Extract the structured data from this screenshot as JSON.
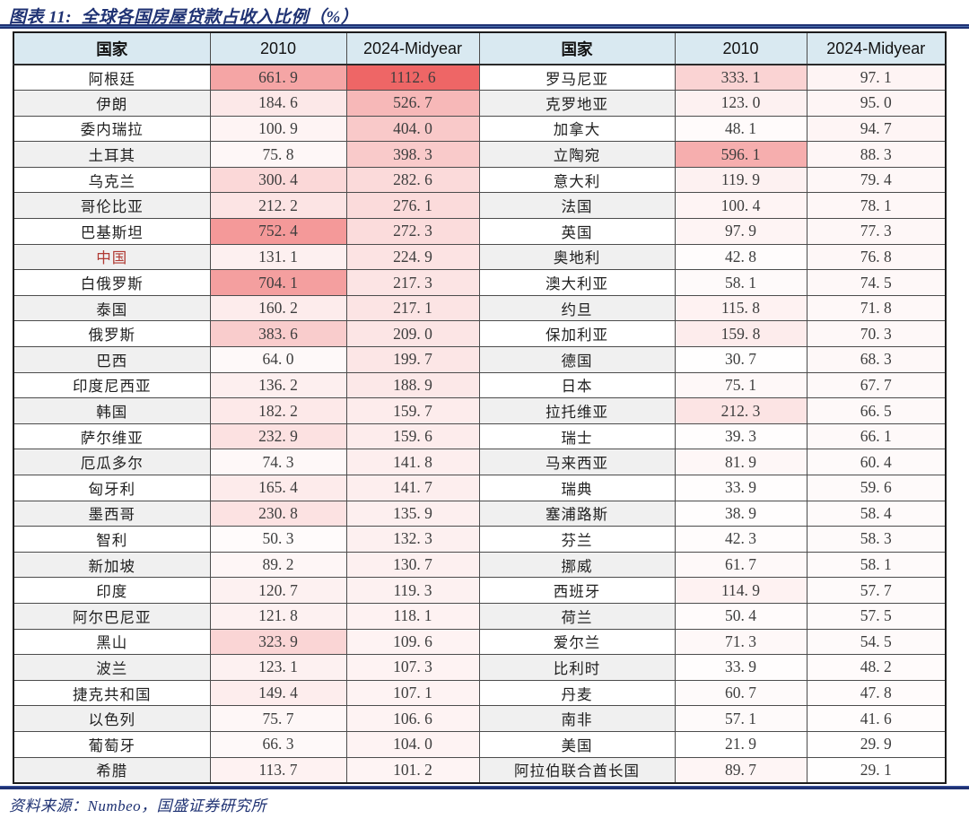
{
  "title": "图表 11:  全球各国房屋贷款占收入比例（%）",
  "footer": {
    "source_text": "资料来源：Numbeo，国盛证券研究所"
  },
  "colors": {
    "accent_navy": "#1f3273",
    "header_bg": "#d9e9f1",
    "alt_row_bg": "#f0f0f0",
    "grid_border": "#4c4c4c",
    "highlight_text": "#b03a33",
    "highlight_border": "#d9827e",
    "heat_low": "#ffffff",
    "heat_high": "#ee6666"
  },
  "chart_data": {
    "type": "table",
    "title": "全球各国房屋贷款占收入比例（%）",
    "figure_label": "图表 11",
    "columns": [
      "国家",
      "2010",
      "2024-Midyear"
    ],
    "highlight_country": "中国",
    "heat_scale": {
      "min": 21.9,
      "max": 1112.6,
      "low_color": "#ffffff",
      "high_color": "#ee6666"
    },
    "left_rows": [
      [
        "阿根廷",
        661.9,
        1112.6
      ],
      [
        "伊朗",
        184.6,
        526.7
      ],
      [
        "委内瑞拉",
        100.9,
        404.0
      ],
      [
        "土耳其",
        75.8,
        398.3
      ],
      [
        "乌克兰",
        300.4,
        282.6
      ],
      [
        "哥伦比亚",
        212.2,
        276.1
      ],
      [
        "巴基斯坦",
        752.4,
        272.3
      ],
      [
        "中国",
        131.1,
        224.9
      ],
      [
        "白俄罗斯",
        704.1,
        217.3
      ],
      [
        "泰国",
        160.2,
        217.1
      ],
      [
        "俄罗斯",
        383.6,
        209.0
      ],
      [
        "巴西",
        64.0,
        199.7
      ],
      [
        "印度尼西亚",
        136.2,
        188.9
      ],
      [
        "韩国",
        182.2,
        159.7
      ],
      [
        "萨尔维亚",
        232.9,
        159.6
      ],
      [
        "厄瓜多尔",
        74.3,
        141.8
      ],
      [
        "匈牙利",
        165.4,
        141.7
      ],
      [
        "墨西哥",
        230.8,
        135.9
      ],
      [
        "智利",
        50.3,
        132.3
      ],
      [
        "新加坡",
        89.2,
        130.7
      ],
      [
        "印度",
        120.7,
        119.3
      ],
      [
        "阿尔巴尼亚",
        121.8,
        118.1
      ],
      [
        "黑山",
        323.9,
        109.6
      ],
      [
        "波兰",
        123.1,
        107.3
      ],
      [
        "捷克共和国",
        149.4,
        107.1
      ],
      [
        "以色列",
        75.7,
        106.6
      ],
      [
        "葡萄牙",
        66.3,
        104.0
      ],
      [
        "希腊",
        113.7,
        101.2
      ]
    ],
    "right_rows": [
      [
        "罗马尼亚",
        333.1,
        97.1
      ],
      [
        "克罗地亚",
        123.0,
        95.0
      ],
      [
        "加拿大",
        48.1,
        94.7
      ],
      [
        "立陶宛",
        596.1,
        88.3
      ],
      [
        "意大利",
        119.9,
        79.4
      ],
      [
        "法国",
        100.4,
        78.1
      ],
      [
        "英国",
        97.9,
        77.3
      ],
      [
        "奥地利",
        42.8,
        76.8
      ],
      [
        "澳大利亚",
        58.1,
        74.5
      ],
      [
        "约旦",
        115.8,
        71.8
      ],
      [
        "保加利亚",
        159.8,
        70.3
      ],
      [
        "德国",
        30.7,
        68.3
      ],
      [
        "日本",
        75.1,
        67.7
      ],
      [
        "拉托维亚",
        212.3,
        66.5
      ],
      [
        "瑞士",
        39.3,
        66.1
      ],
      [
        "马来西亚",
        81.9,
        60.4
      ],
      [
        "瑞典",
        33.9,
        59.6
      ],
      [
        "塞浦路斯",
        38.9,
        58.4
      ],
      [
        "芬兰",
        42.3,
        58.3
      ],
      [
        "挪威",
        61.7,
        58.1
      ],
      [
        "西班牙",
        114.9,
        57.7
      ],
      [
        "荷兰",
        50.4,
        57.5
      ],
      [
        "爱尔兰",
        71.3,
        54.5
      ],
      [
        "比利时",
        33.9,
        48.2
      ],
      [
        "丹麦",
        60.7,
        47.8
      ],
      [
        "南非",
        57.1,
        41.6
      ],
      [
        "美国",
        21.9,
        29.9
      ],
      [
        "阿拉伯联合酋长国",
        89.7,
        29.1
      ]
    ]
  }
}
